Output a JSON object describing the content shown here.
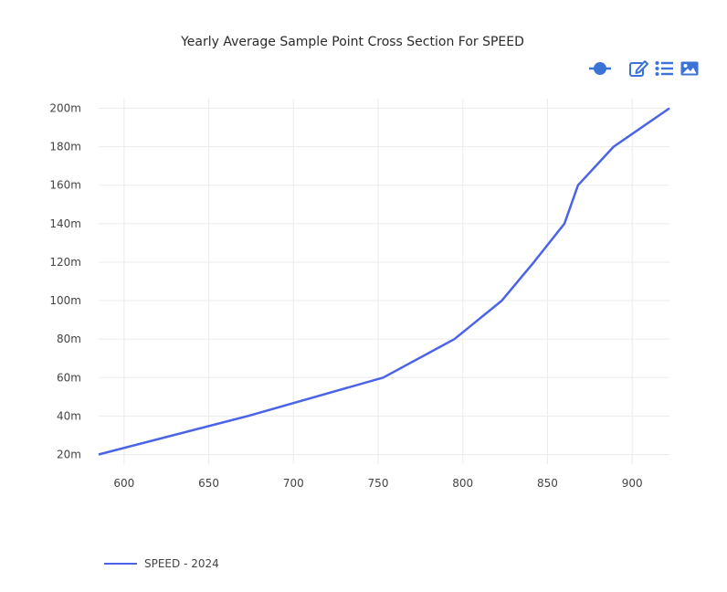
{
  "chart_data": {
    "type": "line",
    "title": "Yearly Average Sample Point Cross Section For SPEED",
    "xlabel": "",
    "ylabel": "",
    "xlim": [
      585,
      922
    ],
    "ylim": [
      15,
      205
    ],
    "x_ticks": [
      600,
      650,
      700,
      750,
      800,
      850,
      900
    ],
    "x_tick_labels": [
      "600",
      "650",
      "700",
      "750",
      "800",
      "850",
      "900"
    ],
    "y_ticks": [
      20,
      40,
      60,
      80,
      100,
      120,
      140,
      160,
      180,
      200
    ],
    "y_tick_labels": [
      "20m",
      "40m",
      "60m",
      "80m",
      "100m",
      "120m",
      "140m",
      "160m",
      "180m",
      "200m"
    ],
    "grid": true,
    "legend_position": "bottom-left",
    "series": [
      {
        "name": "SPEED - 2024",
        "color": "#4a63e7",
        "x": [
          585,
          673,
          753,
          795,
          823,
          842,
          860,
          868,
          889,
          922
        ],
        "y": [
          20,
          40,
          60,
          80,
          100,
          120,
          140,
          160,
          180,
          200
        ]
      }
    ]
  },
  "toolbar": {
    "icons": [
      "line-marker-icon",
      "edit-icon",
      "list-icon",
      "image-icon"
    ],
    "accent": "#3b73d6"
  }
}
